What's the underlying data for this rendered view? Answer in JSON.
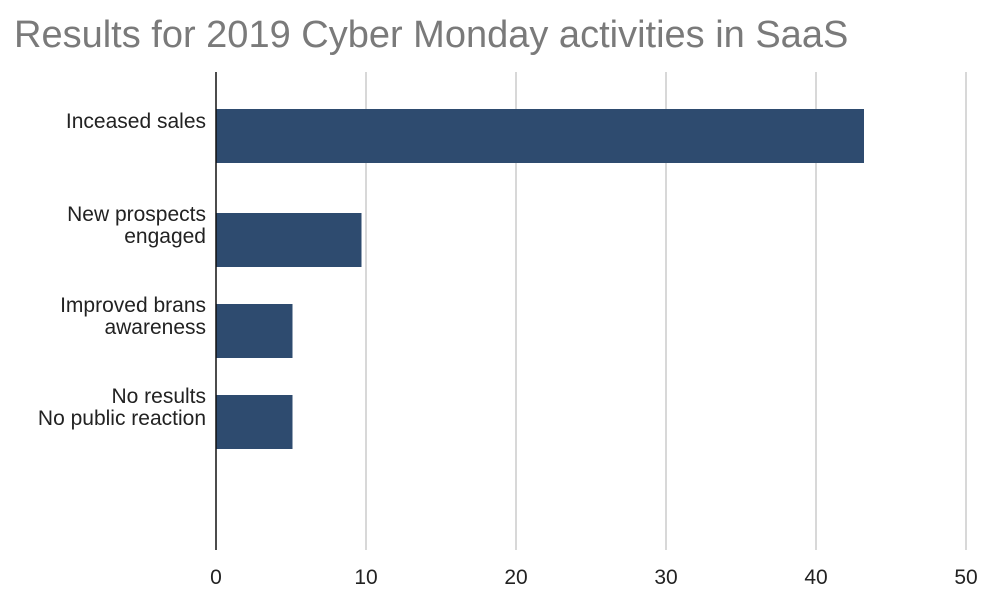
{
  "chart_data": {
    "type": "bar",
    "orientation": "horizontal",
    "title": "Results for 2019 Cyber Monday activities in SaaS",
    "categories": [
      [
        "Inceased sales"
      ],
      [
        "New prospects",
        "engaged"
      ],
      [
        "Improved brans",
        "awareness"
      ],
      [
        "No results",
        "No public reaction"
      ]
    ],
    "values": [
      43.2,
      9.7,
      5.1,
      5.1
    ],
    "xlim": [
      0,
      50
    ],
    "xticks": [
      "0",
      "10",
      "20",
      "30",
      "40",
      "50"
    ],
    "grid": true,
    "bar_color": "#2e4b6f",
    "grid_color": "#bdbdbd"
  }
}
